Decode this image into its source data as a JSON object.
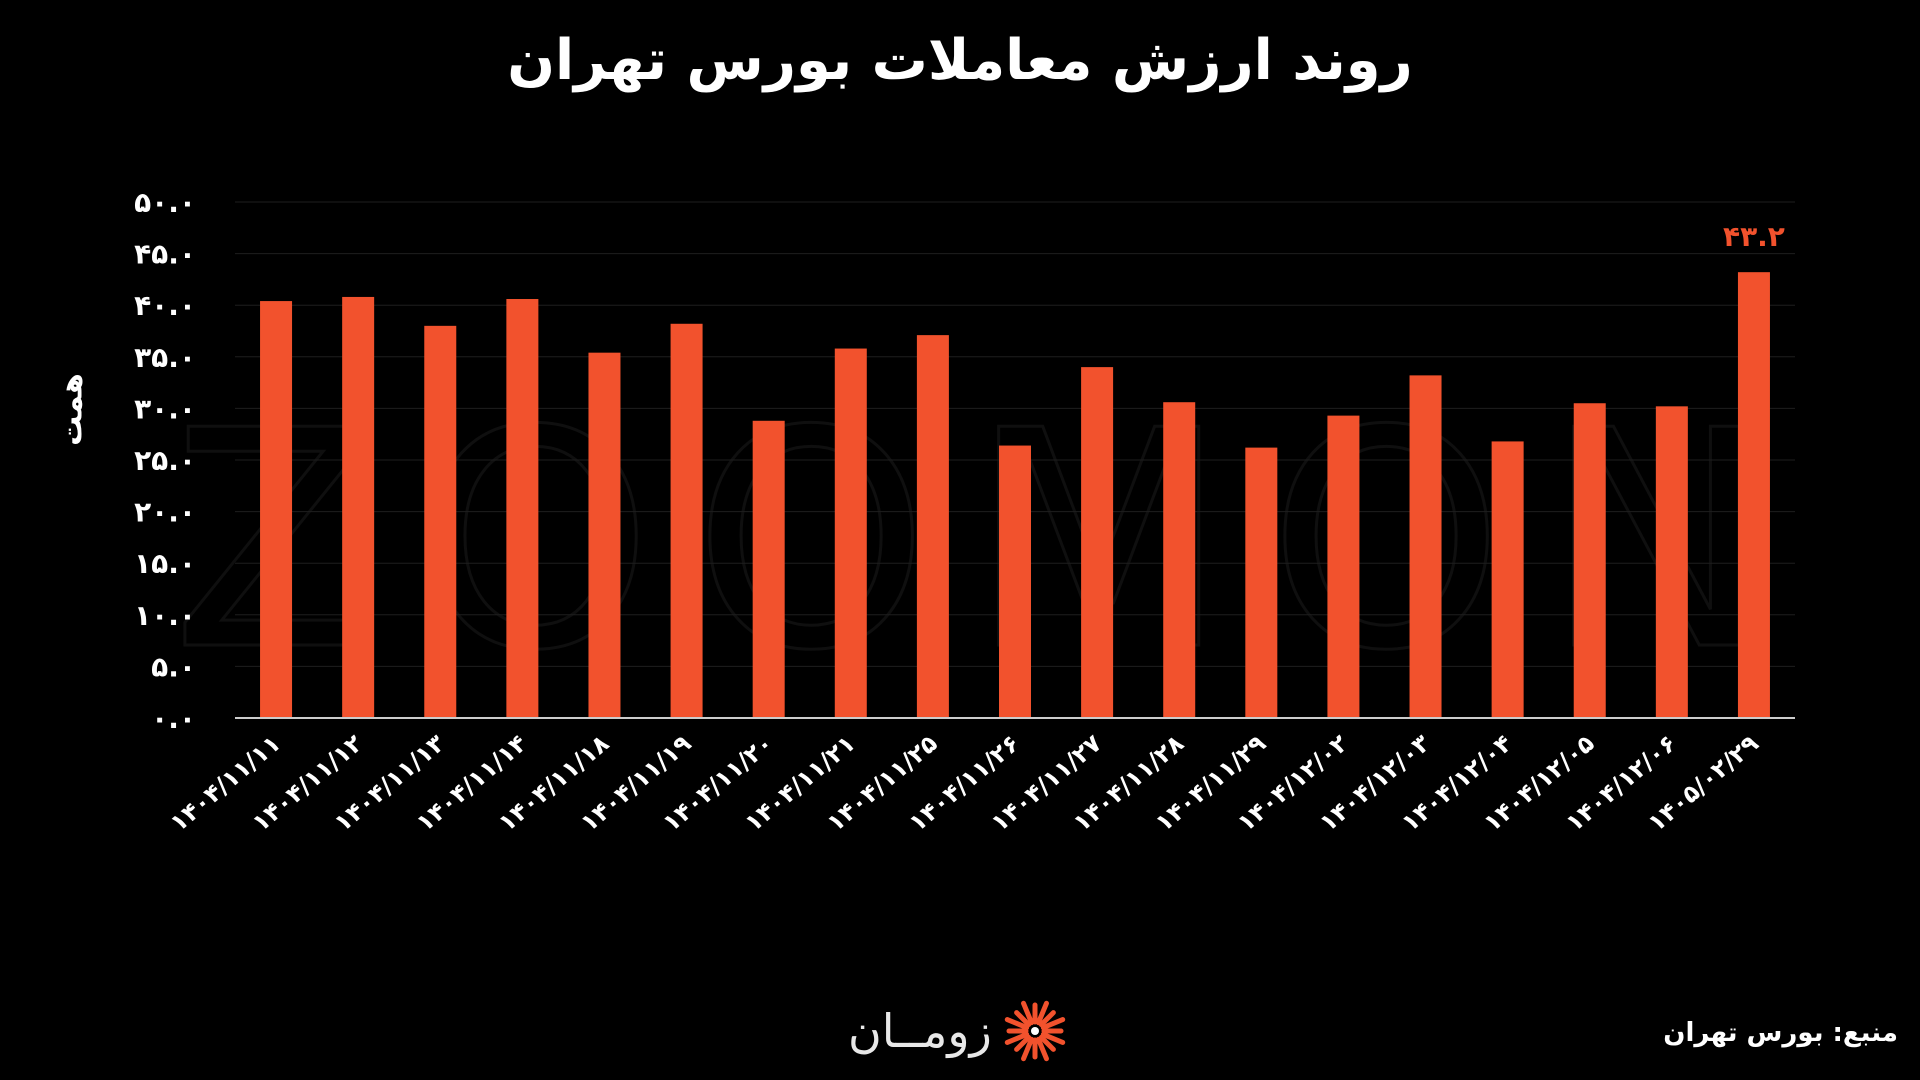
{
  "header": {
    "title": "روند ارزش معاملات بورس تهران"
  },
  "footer": {
    "source": "منبع: بورس تهران",
    "logo_text": "زومــان"
  },
  "watermark": "ZOOMON",
  "colors": {
    "background": "#000000",
    "bar": "#f2522d",
    "highlight_label": "#f2522d",
    "gridline": "#1e1e1e",
    "axis": "#cccccc"
  },
  "chart_data": {
    "type": "bar",
    "title": "روند ارزش معاملات بورس تهران",
    "ylabel": "همت",
    "xlabel": "",
    "ylim": [
      0,
      50
    ],
    "y_ticks": [
      0,
      5,
      10,
      15,
      20,
      25,
      30,
      35,
      40,
      45,
      50
    ],
    "y_tick_labels": [
      "۰.۰",
      "۵.۰",
      "۱۰.۰",
      "۱۵.۰",
      "۲۰.۰",
      "۲۵.۰",
      "۳۰.۰",
      "۳۵.۰",
      "۴۰.۰",
      "۴۵.۰",
      "۵۰.۰"
    ],
    "grid": true,
    "categories": [
      "۱۴۰۴/۱۱/۱۱",
      "۱۴۰۴/۱۱/۱۲",
      "۱۴۰۴/۱۱/۱۳",
      "۱۴۰۴/۱۱/۱۴",
      "۱۴۰۴/۱۱/۱۸",
      "۱۴۰۴/۱۱/۱۹",
      "۱۴۰۴/۱۱/۲۰",
      "۱۴۰۴/۱۱/۲۱",
      "۱۴۰۴/۱۱/۲۵",
      "۱۴۰۴/۱۱/۲۶",
      "۱۴۰۴/۱۱/۲۷",
      "۱۴۰۴/۱۱/۲۸",
      "۱۴۰۴/۱۱/۲۹",
      "۱۴۰۴/۱۲/۰۲",
      "۱۴۰۴/۱۲/۰۳",
      "۱۴۰۴/۱۲/۰۴",
      "۱۴۰۴/۱۲/۰۵",
      "۱۴۰۴/۱۲/۰۶",
      "۱۴۰۵/۰۲/۲۹"
    ],
    "values": [
      40.4,
      40.8,
      38.0,
      40.6,
      35.4,
      38.2,
      28.8,
      35.8,
      37.1,
      26.4,
      34.0,
      30.6,
      26.2,
      29.3,
      33.2,
      26.8,
      30.5,
      30.2,
      43.2
    ],
    "data_labels": [
      {
        "index": 18,
        "text": "۴۳.۲"
      }
    ]
  }
}
